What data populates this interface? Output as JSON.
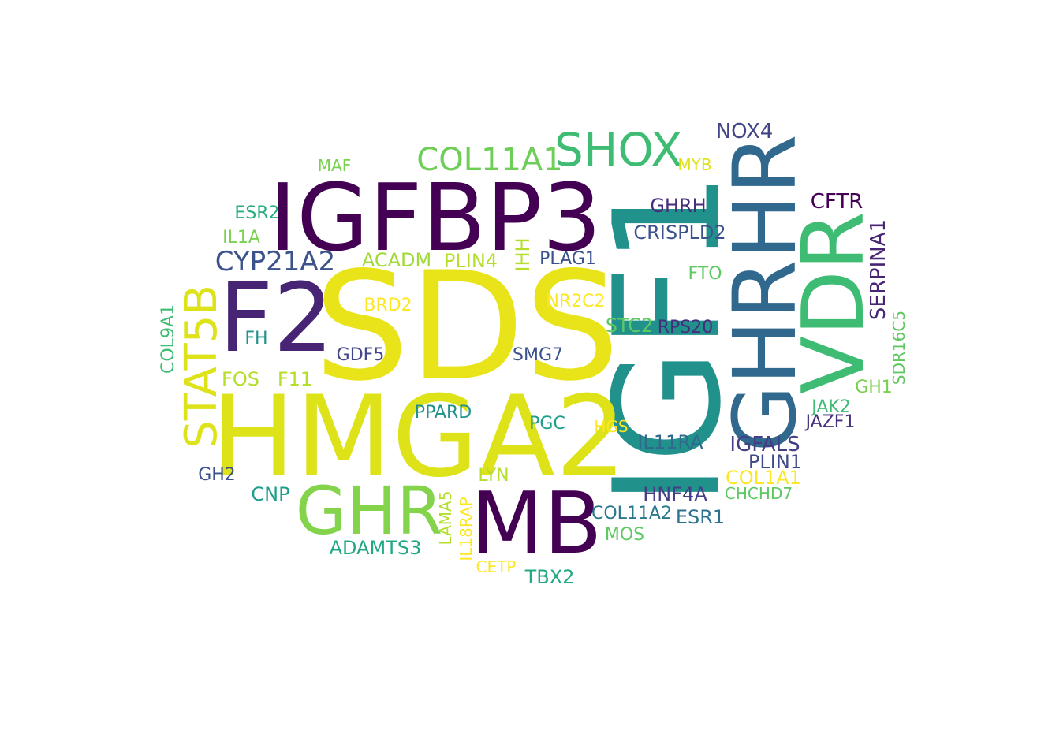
{
  "words": [
    {
      "text": "SDS",
      "color": "#e8e419"
    },
    {
      "text": "IGF1",
      "color": "#21918c"
    },
    {
      "text": "IGFBP3",
      "color": "#440154"
    },
    {
      "text": "HMGA2",
      "color": "#dde318"
    },
    {
      "text": "F2",
      "color": "#482475"
    },
    {
      "text": "GHRHR",
      "color": "#31688e"
    },
    {
      "text": "VDR",
      "color": "#3fbc73"
    },
    {
      "text": "MB",
      "color": "#440154"
    },
    {
      "text": "GHR",
      "color": "#84d44b"
    },
    {
      "text": "SHOX",
      "color": "#3fbc73"
    },
    {
      "text": "STAT5B",
      "color": "#dde318"
    },
    {
      "text": "COL11A1",
      "color": "#6ece58"
    },
    {
      "text": "CYP21A2",
      "color": "#3b528b"
    },
    {
      "text": "NOX4",
      "color": "#414487"
    },
    {
      "text": "CFTR",
      "color": "#440154"
    },
    {
      "text": "GHRH",
      "color": "#472d7b"
    },
    {
      "text": "CRISPLD2",
      "color": "#3b528b"
    },
    {
      "text": "SERPINA1",
      "color": "#482475"
    },
    {
      "text": "SDR16C5",
      "color": "#5ec962"
    },
    {
      "text": "MAF",
      "color": "#7ad151"
    },
    {
      "text": "MYB",
      "color": "#dde318"
    },
    {
      "text": "ESR2",
      "color": "#28ae80"
    },
    {
      "text": "IL1A",
      "color": "#7ad151"
    },
    {
      "text": "ACADM",
      "color": "#a0da39"
    },
    {
      "text": "PLIN4",
      "color": "#b5de2b"
    },
    {
      "text": "IHH",
      "color": "#b5de2b"
    },
    {
      "text": "PLAG1",
      "color": "#3b528b"
    },
    {
      "text": "FTO",
      "color": "#5ec962"
    },
    {
      "text": "BRD2",
      "color": "#fde725"
    },
    {
      "text": "NR2C2",
      "color": "#fde725"
    },
    {
      "text": "STC2",
      "color": "#5ec962"
    },
    {
      "text": "RPS20",
      "color": "#472d7b"
    },
    {
      "text": "COL9A1",
      "color": "#3fbc73"
    },
    {
      "text": "FH",
      "color": "#21918c"
    },
    {
      "text": "GDF5",
      "color": "#414487"
    },
    {
      "text": "SMG7",
      "color": "#3b528b"
    },
    {
      "text": "FOS",
      "color": "#b5de2b"
    },
    {
      "text": "F11",
      "color": "#b5de2b"
    },
    {
      "text": "GH1",
      "color": "#7ad151"
    },
    {
      "text": "JAK2",
      "color": "#3fbc73"
    },
    {
      "text": "JAZF1",
      "color": "#472d7b"
    },
    {
      "text": "PPARD",
      "color": "#21918c"
    },
    {
      "text": "PGC",
      "color": "#1f9e89"
    },
    {
      "text": "HGS",
      "color": "#fde725"
    },
    {
      "text": "IL11RA",
      "color": "#31688e"
    },
    {
      "text": "IGFALS",
      "color": "#433e85"
    },
    {
      "text": "PLIN1",
      "color": "#3e4a89"
    },
    {
      "text": "GH2",
      "color": "#3b528b"
    },
    {
      "text": "CNP",
      "color": "#1f9e89"
    },
    {
      "text": "LYN",
      "color": "#b5de2b"
    },
    {
      "text": "COL1A1",
      "color": "#fde725"
    },
    {
      "text": "HNF4A",
      "color": "#433e85"
    },
    {
      "text": "CHCHD7",
      "color": "#5ec962"
    },
    {
      "text": "LAMA5",
      "color": "#b5de2b"
    },
    {
      "text": "IL18RAP",
      "color": "#fde725"
    },
    {
      "text": "COL11A2",
      "color": "#2a788e"
    },
    {
      "text": "ESR1",
      "color": "#2c728e"
    },
    {
      "text": "ADAMTS3",
      "color": "#22a884"
    },
    {
      "text": "MOS",
      "color": "#5ec962"
    },
    {
      "text": "CETP",
      "color": "#fde725"
    },
    {
      "text": "TBX2",
      "color": "#22a884"
    }
  ]
}
